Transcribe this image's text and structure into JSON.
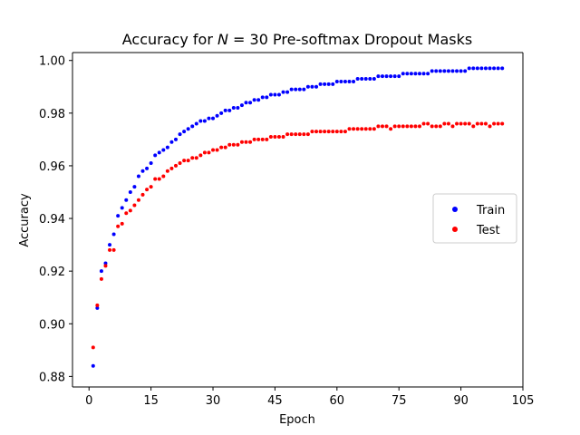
{
  "chart_data": {
    "type": "scatter",
    "title": "Accuracy for N = 30 Pre-softmax Dropout Masks",
    "title_parts": {
      "prefix": "Accuracy for ",
      "variable": "N",
      "suffix": " = 30 Pre-softmax Dropout Masks"
    },
    "xlabel": "Epoch",
    "ylabel": "Accuracy",
    "xlim": [
      -4,
      105
    ],
    "ylim": [
      0.876,
      1.003
    ],
    "xticks": [
      0,
      15,
      30,
      45,
      60,
      75,
      90,
      105
    ],
    "xtick_labels": [
      "0",
      "15",
      "30",
      "45",
      "60",
      "75",
      "90",
      "105"
    ],
    "yticks": [
      0.88,
      0.9,
      0.92,
      0.94,
      0.96,
      0.98,
      1.0
    ],
    "ytick_labels": [
      "0.88",
      "0.90",
      "0.92",
      "0.94",
      "0.96",
      "0.98",
      "1.00"
    ],
    "legend_position": "center-right",
    "grid": false,
    "series": [
      {
        "name": "Train",
        "color": "#0000ff",
        "x": [
          1,
          2,
          3,
          4,
          5,
          6,
          7,
          8,
          9,
          10,
          11,
          12,
          13,
          14,
          15,
          16,
          17,
          18,
          19,
          20,
          21,
          22,
          23,
          24,
          25,
          26,
          27,
          28,
          29,
          30,
          31,
          32,
          33,
          34,
          35,
          36,
          37,
          38,
          39,
          40,
          41,
          42,
          43,
          44,
          45,
          46,
          47,
          48,
          49,
          50,
          51,
          52,
          53,
          54,
          55,
          56,
          57,
          58,
          59,
          60,
          61,
          62,
          63,
          64,
          65,
          66,
          67,
          68,
          69,
          70,
          71,
          72,
          73,
          74,
          75,
          76,
          77,
          78,
          79,
          80,
          81,
          82,
          83,
          84,
          85,
          86,
          87,
          88,
          89,
          90,
          91,
          92,
          93,
          94,
          95,
          96,
          97,
          98,
          99,
          100
        ],
        "y": [
          0.884,
          0.906,
          0.92,
          0.923,
          0.93,
          0.934,
          0.941,
          0.944,
          0.947,
          0.95,
          0.952,
          0.956,
          0.958,
          0.959,
          0.961,
          0.964,
          0.965,
          0.966,
          0.967,
          0.969,
          0.97,
          0.972,
          0.973,
          0.974,
          0.975,
          0.976,
          0.977,
          0.977,
          0.978,
          0.978,
          0.979,
          0.98,
          0.981,
          0.981,
          0.982,
          0.982,
          0.983,
          0.984,
          0.984,
          0.985,
          0.985,
          0.986,
          0.986,
          0.987,
          0.987,
          0.987,
          0.988,
          0.988,
          0.989,
          0.989,
          0.989,
          0.989,
          0.99,
          0.99,
          0.99,
          0.991,
          0.991,
          0.991,
          0.991,
          0.992,
          0.992,
          0.992,
          0.992,
          0.992,
          0.993,
          0.993,
          0.993,
          0.993,
          0.993,
          0.994,
          0.994,
          0.994,
          0.994,
          0.994,
          0.994,
          0.995,
          0.995,
          0.995,
          0.995,
          0.995,
          0.995,
          0.995,
          0.996,
          0.996,
          0.996,
          0.996,
          0.996,
          0.996,
          0.996,
          0.996,
          0.996,
          0.997,
          0.997,
          0.997,
          0.997,
          0.997,
          0.997,
          0.997,
          0.997,
          0.997
        ]
      },
      {
        "name": "Test",
        "color": "#ff0000",
        "x": [
          1,
          2,
          3,
          4,
          5,
          6,
          7,
          8,
          9,
          10,
          11,
          12,
          13,
          14,
          15,
          16,
          17,
          18,
          19,
          20,
          21,
          22,
          23,
          24,
          25,
          26,
          27,
          28,
          29,
          30,
          31,
          32,
          33,
          34,
          35,
          36,
          37,
          38,
          39,
          40,
          41,
          42,
          43,
          44,
          45,
          46,
          47,
          48,
          49,
          50,
          51,
          52,
          53,
          54,
          55,
          56,
          57,
          58,
          59,
          60,
          61,
          62,
          63,
          64,
          65,
          66,
          67,
          68,
          69,
          70,
          71,
          72,
          73,
          74,
          75,
          76,
          77,
          78,
          79,
          80,
          81,
          82,
          83,
          84,
          85,
          86,
          87,
          88,
          89,
          90,
          91,
          92,
          93,
          94,
          95,
          96,
          97,
          98,
          99,
          100
        ],
        "y": [
          0.891,
          0.907,
          0.917,
          0.922,
          0.928,
          0.928,
          0.937,
          0.938,
          0.942,
          0.943,
          0.945,
          0.947,
          0.949,
          0.951,
          0.952,
          0.955,
          0.955,
          0.956,
          0.958,
          0.959,
          0.96,
          0.961,
          0.962,
          0.962,
          0.963,
          0.963,
          0.964,
          0.965,
          0.965,
          0.966,
          0.966,
          0.967,
          0.967,
          0.968,
          0.968,
          0.968,
          0.969,
          0.969,
          0.969,
          0.97,
          0.97,
          0.97,
          0.97,
          0.971,
          0.971,
          0.971,
          0.971,
          0.972,
          0.972,
          0.972,
          0.972,
          0.972,
          0.972,
          0.973,
          0.973,
          0.973,
          0.973,
          0.973,
          0.973,
          0.973,
          0.973,
          0.973,
          0.974,
          0.974,
          0.974,
          0.974,
          0.974,
          0.974,
          0.974,
          0.975,
          0.975,
          0.975,
          0.974,
          0.975,
          0.975,
          0.975,
          0.975,
          0.975,
          0.975,
          0.975,
          0.976,
          0.976,
          0.975,
          0.975,
          0.975,
          0.976,
          0.976,
          0.975,
          0.976,
          0.976,
          0.976,
          0.976,
          0.975,
          0.976,
          0.976,
          0.976,
          0.975,
          0.976,
          0.976,
          0.976
        ]
      }
    ]
  }
}
